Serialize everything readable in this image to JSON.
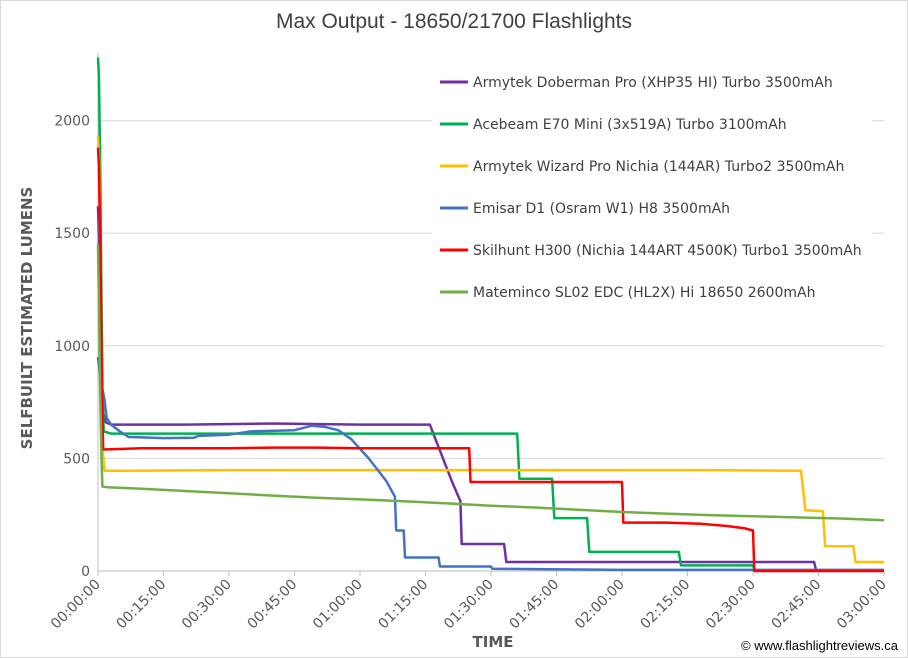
{
  "chart_data": {
    "type": "line",
    "title": "Max Output - 18650/21700 Flashlights",
    "xlabel": "TIME",
    "ylabel": "SELFBUILT ESTIMATED LUMENS",
    "xlim_minutes": [
      0,
      180
    ],
    "ylim": [
      0,
      2300
    ],
    "y_ticks": [
      0,
      500,
      1000,
      1500,
      2000
    ],
    "x_ticks_minutes": [
      0,
      15,
      30,
      45,
      60,
      75,
      90,
      105,
      120,
      135,
      150,
      165,
      180
    ],
    "x_tick_labels": [
      "00:00:00",
      "00:15:00",
      "00:30:00",
      "00:45:00",
      "01:00:00",
      "01:15:00",
      "01:30:00",
      "01:45:00",
      "02:00:00",
      "02:15:00",
      "02:30:00",
      "02:45:00",
      "03:00:00"
    ],
    "grid": "horizontal",
    "legend_position": "top-right",
    "series": [
      {
        "name": "Armytek Doberman Pro (XHP35 HI) Turbo 3500mAh",
        "color": "#7030A0",
        "points": [
          [
            0,
            1620
          ],
          [
            0.3,
            1400
          ],
          [
            0.6,
            1100
          ],
          [
            0.9,
            850
          ],
          [
            1.2,
            700
          ],
          [
            1.8,
            660
          ],
          [
            3,
            650
          ],
          [
            20,
            650
          ],
          [
            40,
            655
          ],
          [
            60,
            650
          ],
          [
            76,
            650
          ],
          [
            77,
            600
          ],
          [
            79,
            500
          ],
          [
            81,
            400
          ],
          [
            83,
            310
          ],
          [
            83.3,
            120
          ],
          [
            93,
            120
          ],
          [
            93.5,
            40
          ],
          [
            110,
            40
          ],
          [
            130,
            40
          ],
          [
            160,
            40
          ],
          [
            164,
            40
          ],
          [
            164.5,
            0
          ]
        ]
      },
      {
        "name": "Acebeam E70 Mini (3x519A) Turbo 3100mAh",
        "color": "#00B050",
        "points": [
          [
            0,
            2280
          ],
          [
            0.2,
            2200
          ],
          [
            0.5,
            1800
          ],
          [
            0.8,
            1200
          ],
          [
            1,
            800
          ],
          [
            1.3,
            620
          ],
          [
            3,
            610
          ],
          [
            20,
            610
          ],
          [
            40,
            610
          ],
          [
            60,
            610
          ],
          [
            80,
            610
          ],
          [
            96,
            610
          ],
          [
            96.5,
            410
          ],
          [
            104,
            410
          ],
          [
            104.5,
            235
          ],
          [
            112,
            235
          ],
          [
            112.5,
            85
          ],
          [
            133,
            85
          ],
          [
            133.5,
            25
          ],
          [
            150,
            25
          ],
          [
            150.5,
            0
          ]
        ]
      },
      {
        "name": "Armytek Wizard Pro Nichia (144AR) Turbo2 3500mAh",
        "color": "#FFC000",
        "points": [
          [
            0,
            1930
          ],
          [
            0.3,
            1800
          ],
          [
            0.6,
            1300
          ],
          [
            0.9,
            800
          ],
          [
            1.1,
            530
          ],
          [
            1.5,
            445
          ],
          [
            5,
            445
          ],
          [
            30,
            448
          ],
          [
            60,
            448
          ],
          [
            90,
            448
          ],
          [
            120,
            448
          ],
          [
            140,
            448
          ],
          [
            161,
            445
          ],
          [
            162,
            270
          ],
          [
            166,
            265
          ],
          [
            166.5,
            110
          ],
          [
            173,
            110
          ],
          [
            173.5,
            40
          ],
          [
            180,
            40
          ]
        ]
      },
      {
        "name": "Emisar D1 (Osram W1) H8 3500mAh",
        "color": "#4472C4",
        "points": [
          [
            0,
            950
          ],
          [
            0.3,
            900
          ],
          [
            0.8,
            830
          ],
          [
            1.5,
            760
          ],
          [
            2,
            680
          ],
          [
            3,
            650
          ],
          [
            5,
            620
          ],
          [
            7,
            595
          ],
          [
            10,
            593
          ],
          [
            15,
            590
          ],
          [
            22,
            592
          ],
          [
            23,
            600
          ],
          [
            30,
            605
          ],
          [
            35,
            620
          ],
          [
            45,
            625
          ],
          [
            49,
            645
          ],
          [
            52,
            640
          ],
          [
            55,
            625
          ],
          [
            58,
            585
          ],
          [
            62,
            500
          ],
          [
            66,
            400
          ],
          [
            68,
            330
          ],
          [
            68.3,
            180
          ],
          [
            70,
            180
          ],
          [
            70.3,
            60
          ],
          [
            78,
            60
          ],
          [
            78.3,
            20
          ],
          [
            90,
            20
          ],
          [
            90.3,
            10
          ],
          [
            120,
            5
          ],
          [
            180,
            5
          ]
        ]
      },
      {
        "name": "Skilhunt H300 (Nichia 144ART 4500K) Turbo1 3500mAh",
        "color": "#FF0000",
        "points": [
          [
            0,
            1880
          ],
          [
            0.2,
            1800
          ],
          [
            0.5,
            1500
          ],
          [
            0.8,
            1000
          ],
          [
            1,
            700
          ],
          [
            1.2,
            540
          ],
          [
            2,
            540
          ],
          [
            10,
            545
          ],
          [
            20,
            545
          ],
          [
            30,
            545
          ],
          [
            40,
            548
          ],
          [
            50,
            548
          ],
          [
            60,
            545
          ],
          [
            70,
            545
          ],
          [
            80,
            545
          ],
          [
            85,
            545
          ],
          [
            85.3,
            395
          ],
          [
            95,
            395
          ],
          [
            110,
            395
          ],
          [
            120,
            395
          ],
          [
            120.3,
            215
          ],
          [
            130,
            215
          ],
          [
            138,
            210
          ],
          [
            144,
            200
          ],
          [
            148,
            190
          ],
          [
            150,
            180
          ],
          [
            150.3,
            0
          ],
          [
            180,
            0
          ]
        ]
      },
      {
        "name": "Mateminco SL02 EDC (HL2X) Hi 18650 2600mAh",
        "color": "#70AD47",
        "points": [
          [
            0,
            1450
          ],
          [
            0.2,
            1200
          ],
          [
            0.5,
            800
          ],
          [
            0.8,
            500
          ],
          [
            1,
            375
          ],
          [
            2,
            372
          ],
          [
            10,
            365
          ],
          [
            20,
            355
          ],
          [
            30,
            345
          ],
          [
            40,
            335
          ],
          [
            50,
            325
          ],
          [
            60,
            318
          ],
          [
            70,
            310
          ],
          [
            80,
            300
          ],
          [
            90,
            290
          ],
          [
            100,
            282
          ],
          [
            110,
            272
          ],
          [
            120,
            262
          ],
          [
            130,
            255
          ],
          [
            140,
            248
          ],
          [
            150,
            243
          ],
          [
            160,
            238
          ],
          [
            170,
            233
          ],
          [
            180,
            225
          ]
        ]
      }
    ]
  },
  "copyright": "© www.flashlightreviews.ca"
}
